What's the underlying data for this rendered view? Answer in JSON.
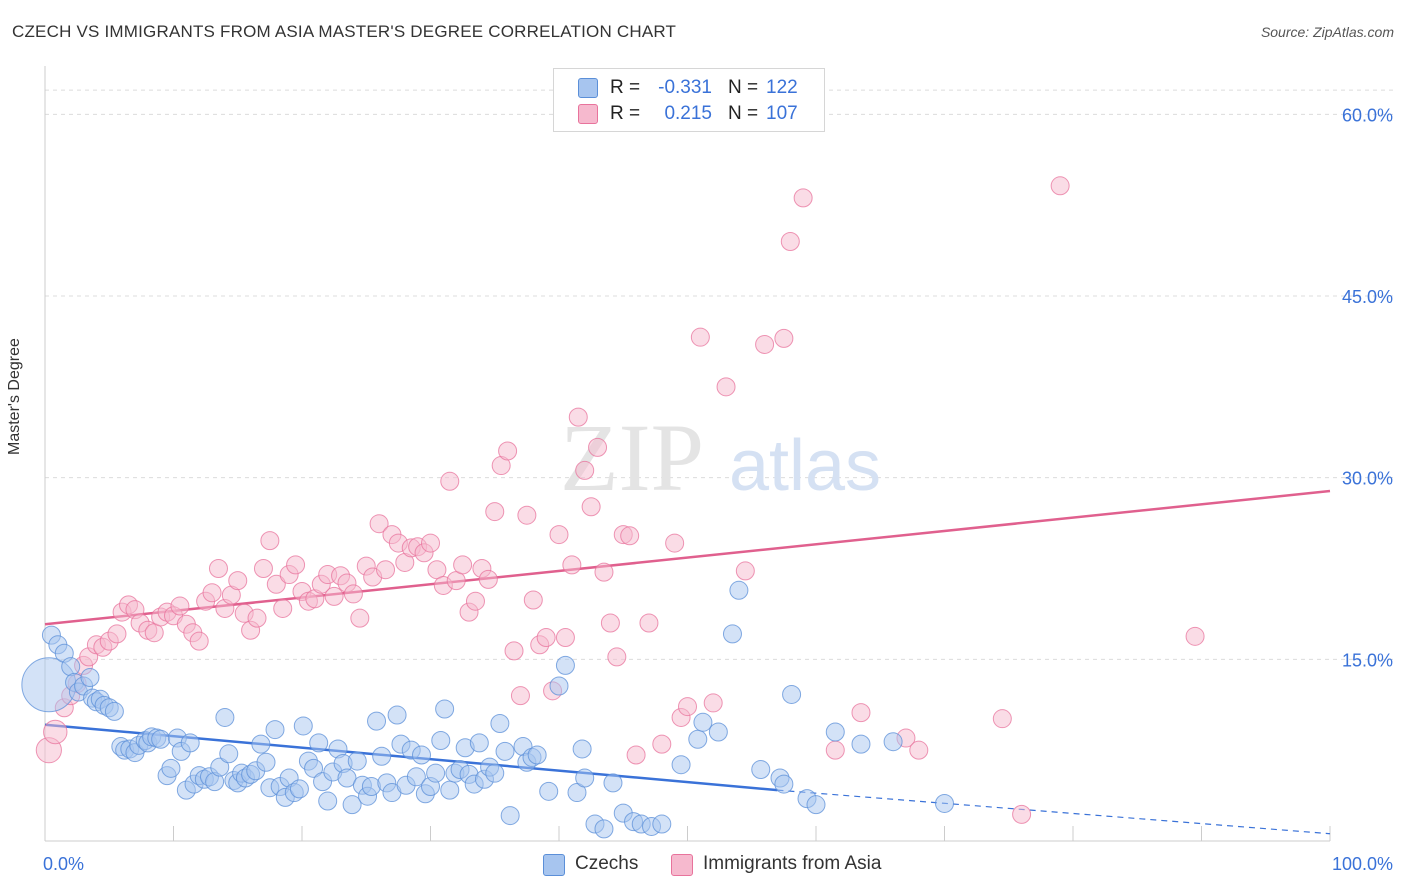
{
  "header": {
    "title": "CZECH VS IMMIGRANTS FROM ASIA MASTER'S DEGREE CORRELATION CHART",
    "source": "Source: ZipAtlas.com"
  },
  "watermark": {
    "zip": "ZIP",
    "atlas": "atlas"
  },
  "legend": {
    "rows": [
      {
        "r_label": "R =",
        "r_value": "-0.331",
        "n_label": "N =",
        "n_value": "122",
        "color": "#a7c5ef"
      },
      {
        "r_label": "R =",
        "r_value": "0.215",
        "n_label": "N =",
        "n_value": "107",
        "color": "#f6b9ce"
      }
    ]
  },
  "bottom_legend": {
    "czechs": "Czechs",
    "asia": "Immigrants from Asia"
  },
  "chart_data": {
    "type": "scatter",
    "title": "CZECH VS IMMIGRANTS FROM ASIA MASTER'S DEGREE CORRELATION CHART",
    "xlabel": "",
    "ylabel": "Master's Degree",
    "xlim": [
      0,
      100
    ],
    "ylim": [
      0,
      63
    ],
    "x_tick_labels": [
      "0.0%",
      "100.0%"
    ],
    "y_ticks": [
      {
        "value": 15,
        "label": "15.0%"
      },
      {
        "value": 30,
        "label": "30.0%"
      },
      {
        "value": 45,
        "label": "45.0%"
      },
      {
        "value": 60,
        "label": "60.0%"
      }
    ],
    "colors": {
      "czechs": "#5b8fd8",
      "czechs_fill": "#a7c5ef",
      "asia": "#e8739c",
      "asia_fill": "#f6b9ce"
    },
    "series": [
      {
        "name": "Czechs",
        "trend": {
          "x0": 0,
          "y0": 9.6,
          "x1": 57,
          "y1": 4.2,
          "dash_to_x": 100,
          "dash_to_y": 0.6
        },
        "points": [
          [
            0.3,
            12.9,
            3
          ],
          [
            0.5,
            17.0,
            1
          ],
          [
            1.0,
            16.2,
            1
          ],
          [
            1.5,
            15.5,
            1
          ],
          [
            2.0,
            14.4,
            1
          ],
          [
            2.3,
            13.1,
            1
          ],
          [
            2.6,
            12.3,
            1
          ],
          [
            3.0,
            12.8,
            1
          ],
          [
            3.5,
            13.5,
            1
          ],
          [
            3.7,
            11.8,
            1
          ],
          [
            4.0,
            11.5,
            1
          ],
          [
            4.3,
            11.7,
            1
          ],
          [
            4.6,
            11.2,
            1
          ],
          [
            5.0,
            11.0,
            1
          ],
          [
            5.4,
            10.7,
            1
          ],
          [
            5.9,
            7.8,
            1
          ],
          [
            6.2,
            7.5,
            1
          ],
          [
            6.6,
            7.6,
            1
          ],
          [
            7.0,
            7.3,
            1
          ],
          [
            7.3,
            7.9,
            1
          ],
          [
            7.8,
            8.3,
            1
          ],
          [
            8.0,
            8.1,
            1
          ],
          [
            8.3,
            8.6,
            1
          ],
          [
            8.7,
            8.5,
            1
          ],
          [
            9.0,
            8.4,
            1
          ],
          [
            9.5,
            5.4,
            1
          ],
          [
            9.8,
            6.0,
            1
          ],
          [
            10.3,
            8.5,
            1
          ],
          [
            10.6,
            7.4,
            1
          ],
          [
            11.0,
            4.2,
            1
          ],
          [
            11.3,
            8.1,
            1
          ],
          [
            11.6,
            4.7,
            1
          ],
          [
            12.0,
            5.4,
            1
          ],
          [
            12.4,
            5.1,
            1
          ],
          [
            12.8,
            5.3,
            1
          ],
          [
            13.2,
            4.9,
            1
          ],
          [
            13.6,
            6.1,
            1
          ],
          [
            14.0,
            10.2,
            1
          ],
          [
            14.3,
            7.2,
            1
          ],
          [
            14.7,
            5.0,
            1
          ],
          [
            15.0,
            4.8,
            1
          ],
          [
            15.3,
            5.6,
            1
          ],
          [
            15.6,
            5.2,
            1
          ],
          [
            16.0,
            5.5,
            1
          ],
          [
            16.4,
            5.8,
            1
          ],
          [
            16.8,
            8.0,
            1
          ],
          [
            17.2,
            6.5,
            1
          ],
          [
            17.5,
            4.4,
            1
          ],
          [
            17.9,
            9.2,
            1
          ],
          [
            18.3,
            4.5,
            1
          ],
          [
            18.7,
            3.6,
            1
          ],
          [
            19.0,
            5.2,
            1
          ],
          [
            19.4,
            4.0,
            1
          ],
          [
            19.8,
            4.3,
            1
          ],
          [
            20.1,
            9.5,
            1
          ],
          [
            20.5,
            6.6,
            1
          ],
          [
            20.9,
            6.0,
            1
          ],
          [
            21.3,
            8.1,
            1
          ],
          [
            21.6,
            4.9,
            1
          ],
          [
            22.0,
            3.3,
            1
          ],
          [
            22.4,
            5.7,
            1
          ],
          [
            22.8,
            7.6,
            1
          ],
          [
            23.2,
            6.4,
            1
          ],
          [
            23.5,
            5.2,
            1
          ],
          [
            23.9,
            3.0,
            1
          ],
          [
            24.3,
            6.6,
            1
          ],
          [
            24.7,
            4.6,
            1
          ],
          [
            25.1,
            3.7,
            1
          ],
          [
            25.4,
            4.5,
            1
          ],
          [
            25.8,
            9.9,
            1
          ],
          [
            26.2,
            7.0,
            1
          ],
          [
            26.6,
            4.8,
            1
          ],
          [
            27.0,
            4.0,
            1
          ],
          [
            27.4,
            10.4,
            1
          ],
          [
            27.7,
            8.0,
            1
          ],
          [
            28.1,
            4.6,
            1
          ],
          [
            28.5,
            7.5,
            1
          ],
          [
            28.9,
            5.3,
            1
          ],
          [
            29.3,
            7.1,
            1
          ],
          [
            29.6,
            3.9,
            1
          ],
          [
            30.0,
            4.5,
            1
          ],
          [
            30.4,
            5.6,
            1
          ],
          [
            30.8,
            8.3,
            1
          ],
          [
            31.1,
            10.9,
            1
          ],
          [
            31.5,
            4.2,
            1
          ],
          [
            31.9,
            5.6,
            1
          ],
          [
            32.3,
            5.9,
            1
          ],
          [
            32.7,
            7.7,
            1
          ],
          [
            33.0,
            5.5,
            1
          ],
          [
            33.4,
            4.7,
            1
          ],
          [
            33.8,
            8.1,
            1
          ],
          [
            34.2,
            5.1,
            1
          ],
          [
            34.6,
            6.1,
            1
          ],
          [
            35.0,
            5.6,
            1
          ],
          [
            35.4,
            9.7,
            1
          ],
          [
            35.8,
            7.4,
            1
          ],
          [
            36.2,
            2.1,
            1
          ],
          [
            37.2,
            7.8,
            1
          ],
          [
            37.5,
            6.5,
            1
          ],
          [
            37.9,
            6.9,
            1
          ],
          [
            38.3,
            7.1,
            1
          ],
          [
            39.2,
            4.1,
            1
          ],
          [
            40.0,
            12.8,
            1
          ],
          [
            40.5,
            14.5,
            1
          ],
          [
            41.4,
            4.0,
            1
          ],
          [
            41.8,
            7.6,
            1
          ],
          [
            42.0,
            5.2,
            1
          ],
          [
            42.8,
            1.4,
            1
          ],
          [
            43.5,
            1.0,
            1
          ],
          [
            44.2,
            4.8,
            1
          ],
          [
            45.0,
            2.3,
            1
          ],
          [
            45.8,
            1.6,
            1
          ],
          [
            46.4,
            1.4,
            1
          ],
          [
            47.2,
            1.2,
            1
          ],
          [
            48.0,
            1.4,
            1
          ],
          [
            49.5,
            6.3,
            1
          ],
          [
            50.8,
            8.4,
            1
          ],
          [
            51.2,
            9.8,
            1
          ],
          [
            52.4,
            9.0,
            1
          ],
          [
            53.5,
            17.1,
            1
          ],
          [
            54.0,
            20.7,
            1
          ],
          [
            55.7,
            5.9,
            1
          ],
          [
            57.2,
            5.2,
            1
          ],
          [
            57.5,
            4.7,
            1
          ],
          [
            58.1,
            12.1,
            1
          ],
          [
            59.3,
            3.5,
            1
          ],
          [
            60.0,
            3.0,
            1
          ],
          [
            61.5,
            9.0,
            1
          ],
          [
            63.5,
            8.0,
            1
          ],
          [
            66.0,
            8.2,
            1
          ],
          [
            70.0,
            3.1,
            1
          ]
        ]
      },
      {
        "name": "Immigrants from Asia",
        "trend": {
          "x0": 0,
          "y0": 17.9,
          "x1": 100,
          "y1": 28.9
        },
        "points": [
          [
            0.3,
            7.5,
            1.4
          ],
          [
            0.8,
            9.0,
            1.3
          ],
          [
            1.5,
            11.0,
            1
          ],
          [
            2.0,
            12.0,
            1
          ],
          [
            2.5,
            13.0,
            1
          ],
          [
            3.0,
            14.5,
            1
          ],
          [
            3.4,
            15.2,
            1
          ],
          [
            4.0,
            16.2,
            1
          ],
          [
            4.5,
            16.0,
            1
          ],
          [
            5.0,
            16.5,
            1
          ],
          [
            5.6,
            17.1,
            1
          ],
          [
            6.0,
            18.9,
            1
          ],
          [
            6.5,
            19.5,
            1
          ],
          [
            7.0,
            19.1,
            1
          ],
          [
            7.4,
            18.0,
            1
          ],
          [
            8.0,
            17.4,
            1
          ],
          [
            8.5,
            17.2,
            1
          ],
          [
            9.0,
            18.5,
            1
          ],
          [
            9.5,
            18.9,
            1
          ],
          [
            10.0,
            18.6,
            1
          ],
          [
            10.5,
            19.4,
            1
          ],
          [
            11.0,
            17.9,
            1
          ],
          [
            11.5,
            17.2,
            1
          ],
          [
            12.0,
            16.5,
            1
          ],
          [
            12.5,
            19.8,
            1
          ],
          [
            13.0,
            20.5,
            1
          ],
          [
            13.5,
            22.5,
            1
          ],
          [
            14.0,
            19.2,
            1
          ],
          [
            14.5,
            20.3,
            1
          ],
          [
            15.0,
            21.5,
            1
          ],
          [
            15.5,
            18.8,
            1
          ],
          [
            16.0,
            17.4,
            1
          ],
          [
            16.5,
            18.4,
            1
          ],
          [
            17.0,
            22.5,
            1
          ],
          [
            17.5,
            24.8,
            1
          ],
          [
            18.0,
            21.2,
            1
          ],
          [
            18.5,
            19.2,
            1
          ],
          [
            19.0,
            22.0,
            1
          ],
          [
            19.5,
            22.8,
            1
          ],
          [
            20.0,
            20.6,
            1
          ],
          [
            20.5,
            19.8,
            1
          ],
          [
            21.0,
            20.0,
            1
          ],
          [
            21.5,
            21.2,
            1
          ],
          [
            22.0,
            22.0,
            1
          ],
          [
            22.5,
            20.2,
            1
          ],
          [
            23.0,
            21.9,
            1
          ],
          [
            23.5,
            21.3,
            1
          ],
          [
            24.0,
            20.4,
            1
          ],
          [
            24.5,
            18.4,
            1
          ],
          [
            25.0,
            22.7,
            1
          ],
          [
            25.5,
            21.8,
            1
          ],
          [
            26.0,
            26.2,
            1
          ],
          [
            26.5,
            22.4,
            1
          ],
          [
            27.0,
            25.3,
            1
          ],
          [
            27.5,
            24.6,
            1
          ],
          [
            28.0,
            23.0,
            1
          ],
          [
            28.5,
            24.2,
            1
          ],
          [
            29.0,
            24.3,
            1
          ],
          [
            29.5,
            23.8,
            1
          ],
          [
            30.0,
            24.6,
            1
          ],
          [
            30.5,
            22.4,
            1
          ],
          [
            31.0,
            21.1,
            1
          ],
          [
            31.5,
            29.7,
            1
          ],
          [
            32.0,
            21.5,
            1
          ],
          [
            32.5,
            22.8,
            1
          ],
          [
            33.0,
            18.9,
            1
          ],
          [
            33.5,
            19.8,
            1
          ],
          [
            34.0,
            22.5,
            1
          ],
          [
            34.5,
            21.6,
            1
          ],
          [
            35.0,
            27.2,
            1
          ],
          [
            35.5,
            31.0,
            1
          ],
          [
            36.0,
            32.2,
            1
          ],
          [
            36.5,
            15.7,
            1
          ],
          [
            37.0,
            12.0,
            1
          ],
          [
            37.5,
            26.9,
            1
          ],
          [
            38.0,
            19.9,
            1
          ],
          [
            38.5,
            16.2,
            1
          ],
          [
            39.0,
            16.8,
            1
          ],
          [
            39.5,
            12.4,
            1
          ],
          [
            40.0,
            25.3,
            1
          ],
          [
            40.5,
            16.8,
            1
          ],
          [
            41.0,
            22.8,
            1
          ],
          [
            41.5,
            35.0,
            1
          ],
          [
            42.0,
            30.6,
            1
          ],
          [
            42.5,
            27.6,
            1
          ],
          [
            43.0,
            32.5,
            1
          ],
          [
            43.5,
            22.2,
            1
          ],
          [
            44.0,
            18.0,
            1
          ],
          [
            44.5,
            15.2,
            1
          ],
          [
            45.0,
            25.3,
            1
          ],
          [
            45.5,
            25.2,
            1
          ],
          [
            46.0,
            7.1,
            1
          ],
          [
            47.0,
            18.0,
            1
          ],
          [
            48.0,
            8.0,
            1
          ],
          [
            49.0,
            24.6,
            1
          ],
          [
            49.5,
            10.2,
            1
          ],
          [
            50.0,
            11.1,
            1
          ],
          [
            51.0,
            41.6,
            1
          ],
          [
            52.0,
            11.4,
            1
          ],
          [
            53.0,
            37.5,
            1
          ],
          [
            54.5,
            22.3,
            1
          ],
          [
            56.0,
            41.0,
            1
          ],
          [
            57.5,
            41.5,
            1
          ],
          [
            58.0,
            49.5,
            1
          ],
          [
            59.0,
            53.1,
            1
          ],
          [
            61.5,
            7.5,
            1
          ],
          [
            63.5,
            10.6,
            1
          ],
          [
            67.0,
            8.5,
            1
          ],
          [
            68.0,
            7.5,
            1
          ],
          [
            74.5,
            10.1,
            1
          ],
          [
            76.0,
            2.2,
            1
          ],
          [
            79.0,
            54.1,
            1
          ],
          [
            89.5,
            16.9,
            1
          ]
        ]
      }
    ]
  }
}
